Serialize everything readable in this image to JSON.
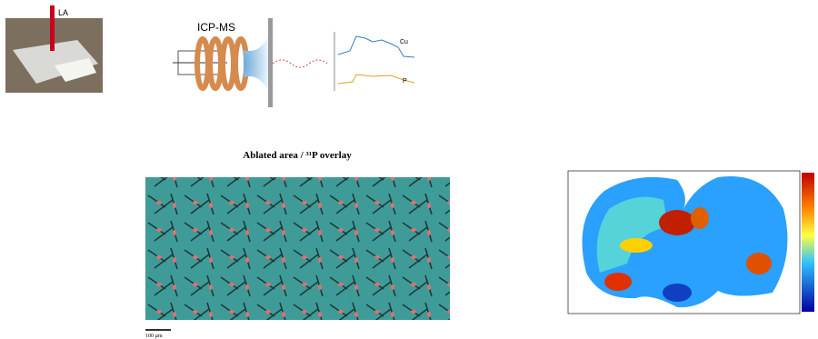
{
  "labels": {
    "la": "LA",
    "icp": "ICP-MS",
    "cu": "Cu",
    "p": "P"
  },
  "panel_title": "Ablated area / ³¹P overlay",
  "scale_bar": "100 µm"
}
